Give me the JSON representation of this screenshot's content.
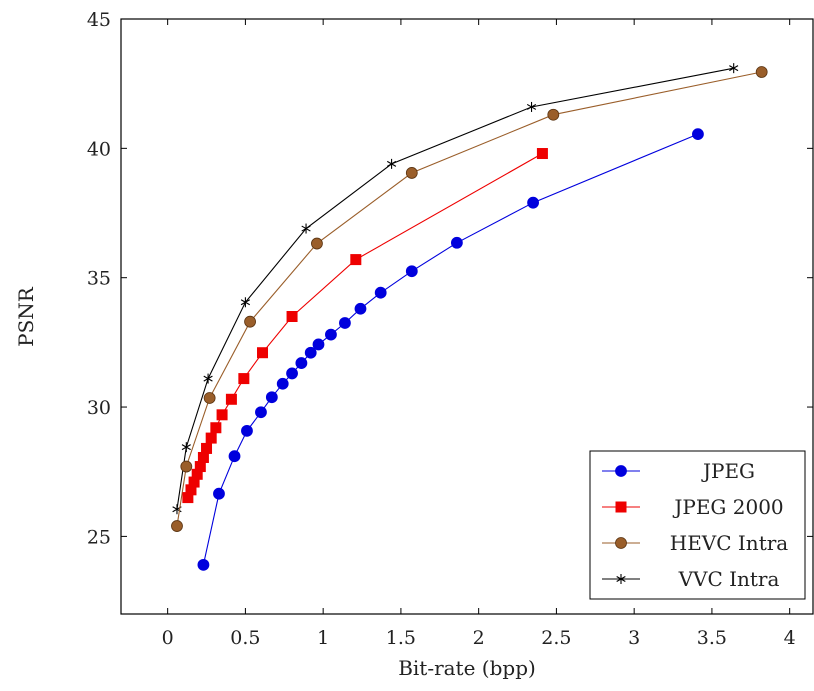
{
  "chart_data": {
    "type": "line",
    "title": "",
    "xlabel": "Bit-rate (bpp)",
    "ylabel": "PSNR",
    "xlim": [
      -0.3,
      4.15
    ],
    "ylim": [
      22,
      45
    ],
    "xticks": [
      0,
      0.5,
      1,
      1.5,
      2,
      2.5,
      3,
      3.5,
      4
    ],
    "xtick_labels": [
      "0",
      "0.5",
      "1",
      "1.5",
      "2",
      "2.5",
      "3",
      "3.5",
      "4"
    ],
    "yticks": [
      25,
      30,
      35,
      40,
      45
    ],
    "ytick_labels": [
      "25",
      "30",
      "35",
      "40",
      "45"
    ],
    "grid": false,
    "legend_position": "bottom-right",
    "series": [
      {
        "name": "JPEG",
        "color": "#0000dd",
        "marker": "circle",
        "x": [
          0.23,
          0.33,
          0.43,
          0.51,
          0.6,
          0.67,
          0.74,
          0.8,
          0.86,
          0.92,
          0.97,
          1.05,
          1.14,
          1.24,
          1.37,
          1.57,
          1.86,
          2.35,
          3.41
        ],
        "y": [
          23.9,
          26.65,
          28.1,
          29.08,
          29.8,
          30.38,
          30.9,
          31.3,
          31.7,
          32.1,
          32.42,
          32.8,
          33.25,
          33.8,
          34.42,
          35.25,
          36.35,
          37.9,
          40.55
        ]
      },
      {
        "name": "JPEG 2000",
        "color": "#ee0000",
        "marker": "square",
        "x": [
          0.13,
          0.15,
          0.17,
          0.19,
          0.21,
          0.23,
          0.25,
          0.28,
          0.31,
          0.35,
          0.41,
          0.49,
          0.61,
          0.8,
          1.21,
          2.41
        ],
        "y": [
          26.5,
          26.8,
          27.1,
          27.4,
          27.7,
          28.05,
          28.4,
          28.8,
          29.2,
          29.7,
          30.3,
          31.1,
          32.1,
          33.5,
          35.7,
          39.8
        ]
      },
      {
        "name": "HEVC Intra",
        "color": "#9a5e2a",
        "marker": "circle",
        "x": [
          0.06,
          0.12,
          0.27,
          0.53,
          0.96,
          1.57,
          2.48,
          3.82
        ],
        "y": [
          25.4,
          27.7,
          30.35,
          33.3,
          36.32,
          39.05,
          41.3,
          42.95
        ]
      },
      {
        "name": "VVC Intra",
        "color": "#000000",
        "marker": "star",
        "x": [
          0.06,
          0.12,
          0.26,
          0.5,
          0.89,
          1.44,
          2.34,
          3.64
        ],
        "y": [
          26.05,
          28.45,
          31.1,
          34.05,
          36.9,
          39.4,
          41.6,
          43.1
        ]
      }
    ]
  }
}
